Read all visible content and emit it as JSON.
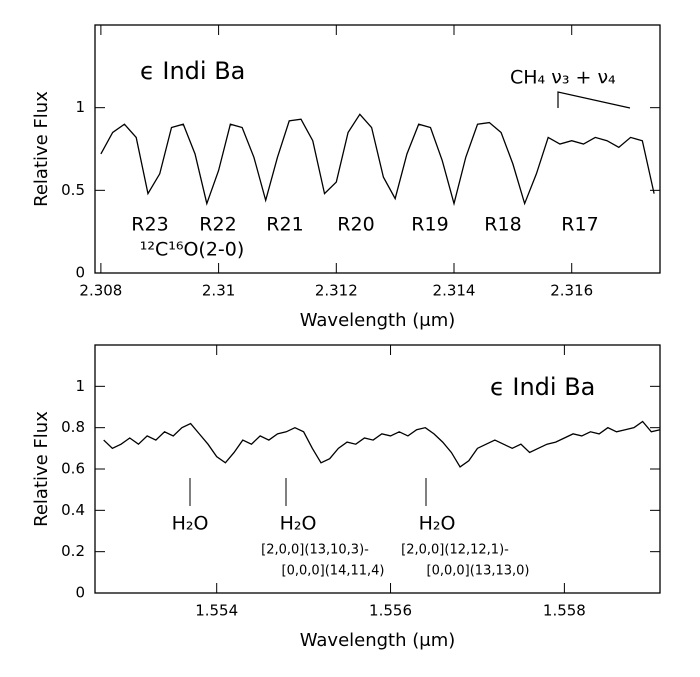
{
  "chart_data": [
    {
      "type": "line",
      "xlabel": "Wavelength (μm)",
      "ylabel": "Relative Flux",
      "annotations": [
        "ϵ Indi Ba",
        "CH₄ ν₃ + ν₄",
        "R23",
        "R22",
        "R21",
        "R20",
        "R19",
        "R18",
        "R17",
        "¹²C¹⁶O(2-0)"
      ],
      "color": "#000000",
      "x": [
        2.308,
        2.3082,
        2.3084,
        2.3086,
        2.3088,
        2.309,
        2.3092,
        2.3094,
        2.3096,
        2.3098,
        2.31,
        2.3102,
        2.3104,
        2.3106,
        2.3108,
        2.311,
        2.3112,
        2.3114,
        2.3116,
        2.3118,
        2.312,
        2.3122,
        2.3124,
        2.3126,
        2.3128,
        2.313,
        2.3132,
        2.3134,
        2.3136,
        2.3138,
        2.314,
        2.3142,
        2.3144,
        2.3146,
        2.3148,
        2.315,
        2.3152,
        2.3154,
        2.3156,
        2.3158,
        2.316,
        2.3162,
        2.3164,
        2.3166,
        2.3168,
        2.317,
        2.3172,
        2.3174
      ],
      "values": [
        0.72,
        0.85,
        0.9,
        0.82,
        0.48,
        0.6,
        0.88,
        0.9,
        0.72,
        0.42,
        0.62,
        0.9,
        0.88,
        0.7,
        0.44,
        0.7,
        0.92,
        0.93,
        0.8,
        0.48,
        0.55,
        0.85,
        0.96,
        0.88,
        0.58,
        0.45,
        0.72,
        0.9,
        0.88,
        0.68,
        0.42,
        0.7,
        0.9,
        0.91,
        0.85,
        0.66,
        0.42,
        0.6,
        0.82,
        0.78,
        0.8,
        0.78,
        0.82,
        0.8,
        0.76,
        0.82,
        0.8,
        0.48
      ],
      "xlim": [
        2.3079,
        2.3175
      ],
      "ylim": [
        0,
        1.5
      ],
      "xticks": [
        2.308,
        2.31,
        2.312,
        2.314,
        2.316
      ],
      "yticks": [
        0,
        0.5,
        1
      ]
    },
    {
      "type": "line",
      "xlabel": "Wavelength (μm)",
      "ylabel": "Relative Flux",
      "annotations": [
        "ϵ Indi Ba",
        "H₂O",
        "H₂O",
        "H₂O",
        "[2,0,0](13,10,3)-",
        "[0,0,0](14,11,4)",
        "[2,0,0](12,12,1)-",
        "[0,0,0](13,13,0)"
      ],
      "color": "#000000",
      "x": [
        1.5527,
        1.5528,
        1.5529,
        1.553,
        1.5531,
        1.5532,
        1.5533,
        1.5534,
        1.5535,
        1.5536,
        1.5537,
        1.5538,
        1.5539,
        1.554,
        1.5541,
        1.5542,
        1.5543,
        1.5544,
        1.5545,
        1.5546,
        1.5547,
        1.5548,
        1.5549,
        1.555,
        1.5551,
        1.5552,
        1.5553,
        1.5554,
        1.5555,
        1.5556,
        1.5557,
        1.5558,
        1.5559,
        1.556,
        1.5561,
        1.5562,
        1.5563,
        1.5564,
        1.5565,
        1.5566,
        1.5567,
        1.5568,
        1.5569,
        1.557,
        1.5571,
        1.5572,
        1.5573,
        1.5574,
        1.5575,
        1.5576,
        1.5577,
        1.5578,
        1.5579,
        1.558,
        1.5581,
        1.5582,
        1.5583,
        1.5584,
        1.5585,
        1.5586,
        1.5587,
        1.5588,
        1.5589,
        1.559,
        1.5591
      ],
      "values": [
        0.74,
        0.7,
        0.72,
        0.75,
        0.72,
        0.76,
        0.74,
        0.78,
        0.76,
        0.8,
        0.82,
        0.77,
        0.72,
        0.66,
        0.63,
        0.68,
        0.74,
        0.72,
        0.76,
        0.74,
        0.77,
        0.78,
        0.8,
        0.78,
        0.7,
        0.63,
        0.65,
        0.7,
        0.73,
        0.72,
        0.75,
        0.74,
        0.77,
        0.76,
        0.78,
        0.76,
        0.79,
        0.8,
        0.77,
        0.73,
        0.68,
        0.61,
        0.64,
        0.7,
        0.72,
        0.74,
        0.72,
        0.7,
        0.72,
        0.68,
        0.7,
        0.72,
        0.73,
        0.75,
        0.77,
        0.76,
        0.78,
        0.77,
        0.8,
        0.78,
        0.79,
        0.8,
        0.83,
        0.78,
        0.79
      ],
      "xlim": [
        1.5526,
        1.5591
      ],
      "ylim": [
        0,
        1.2
      ],
      "xticks": [
        1.554,
        1.556,
        1.558
      ],
      "yticks": [
        0,
        0.2,
        0.4,
        0.6,
        0.8,
        1
      ]
    }
  ]
}
